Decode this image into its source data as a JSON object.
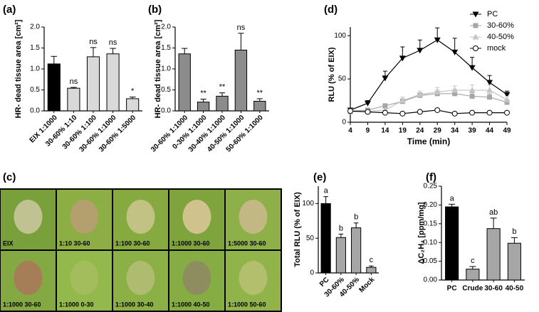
{
  "chart_data": [
    {
      "type": "bar",
      "panel_label": "(a)",
      "y_label": "HR- dead tissue area [cm²]",
      "categories": [
        "EIX 1:1000",
        "30-60% 1:10",
        "30-60% 1:100",
        "30-60% 1:1000",
        "30-60% 1:5000"
      ],
      "values": [
        1.12,
        0.54,
        1.29,
        1.36,
        0.29
      ],
      "errors": [
        0.18,
        0.02,
        0.22,
        0.13,
        0.04
      ],
      "annotations": [
        null,
        "ns",
        "ns",
        "ns",
        "*"
      ],
      "colors": [
        "#000000",
        "#d9d9d9",
        "#d9d9d9",
        "#d9d9d9",
        "#d9d9d9"
      ],
      "ylim": [
        0,
        2.0
      ],
      "yticks": [
        {
          "value": 0,
          "label": "0.0"
        },
        {
          "value": 0.5,
          "label": "0.5"
        },
        {
          "value": 1,
          "label": "1.0"
        },
        {
          "value": 1.5,
          "label": "1.5"
        },
        {
          "value": 2,
          "label": "2.0"
        }
      ]
    },
    {
      "type": "bar",
      "panel_label": "(b)",
      "y_label": "HR- dead tissue area [cm²]",
      "categories": [
        "30-60% 1:1000",
        "0-30% 1:1000",
        "30-40% 1:1000",
        "40-50% 1:1000",
        "50-60% 1:1000"
      ],
      "values": [
        1.36,
        0.21,
        0.35,
        1.45,
        0.23
      ],
      "errors": [
        0.13,
        0.07,
        0.08,
        0.4,
        0.06
      ],
      "annotations": [
        null,
        "**",
        "**",
        "ns",
        "**"
      ],
      "colors": [
        "#8c8c8c",
        "#8c8c8c",
        "#8c8c8c",
        "#8c8c8c",
        "#8c8c8c"
      ],
      "ylim": [
        0,
        2.0
      ],
      "yticks": [
        {
          "value": 0,
          "label": "0.0"
        },
        {
          "value": 0.5,
          "label": "0.5"
        },
        {
          "value": 1,
          "label": "1.0"
        },
        {
          "value": 1.5,
          "label": "1.5"
        },
        {
          "value": 2,
          "label": "2.0"
        }
      ]
    },
    {
      "type": "line",
      "panel_label": "(d)",
      "y_label": "RLU (% of EIX)",
      "x_label": "Time (min)",
      "x": [
        4,
        9,
        14,
        19,
        24,
        29,
        34,
        39,
        44,
        49
      ],
      "xlim": [
        4,
        49
      ],
      "xticks": [
        4,
        9,
        14,
        19,
        24,
        29,
        34,
        39,
        44,
        49
      ],
      "ylim": [
        0,
        110
      ],
      "yticks": [
        0,
        50,
        100
      ],
      "series": [
        {
          "name": "PC",
          "color": "#000000",
          "marker": "triangle-down",
          "values": [
            14,
            22,
            51,
            74,
            83,
            95,
            81,
            63,
            46,
            32
          ],
          "errors": [
            2,
            3,
            8,
            13,
            12,
            14,
            16,
            12,
            8,
            4
          ]
        },
        {
          "name": "30-60%",
          "color": "#a6a6a6",
          "marker": "square",
          "values": [
            13,
            14,
            19,
            24,
            31,
            33,
            33,
            30,
            29,
            23
          ],
          "errors": [
            1,
            1,
            2,
            3,
            3,
            4,
            5,
            4,
            4,
            3
          ]
        },
        {
          "name": "40-50%",
          "color": "#c4c4c4",
          "marker": "triangle",
          "values": [
            12,
            13,
            14,
            25,
            32,
            35,
            37,
            37,
            37,
            26
          ],
          "errors": [
            1,
            1,
            2,
            4,
            4,
            5,
            5,
            6,
            6,
            4
          ]
        },
        {
          "name": "mock",
          "color": "#000000",
          "marker": "circle-open",
          "values": [
            13,
            12,
            11,
            10,
            12,
            14,
            10,
            11,
            11,
            11
          ]
        }
      ]
    },
    {
      "type": "bar",
      "panel_label": "(e)",
      "y_label": "Total RLU (% of EIX)",
      "categories": [
        "PC",
        "30-60%",
        "40-50%",
        "Mock"
      ],
      "values": [
        100,
        51,
        65,
        8
      ],
      "errors": [
        10,
        5,
        7,
        2
      ],
      "annotations": [
        "a",
        "b",
        "b",
        "c"
      ],
      "colors": [
        "#000000",
        "#a6a6a6",
        "#a6a6a6",
        "#a6a6a6"
      ],
      "ylim": [
        0,
        125
      ],
      "yticks": [
        0,
        50,
        100
      ]
    },
    {
      "type": "bar",
      "panel_label": "(f)",
      "y_label": "ΔC₂H₄ [ppm/mg]",
      "categories": [
        "PC",
        "Crude",
        "30-60",
        "40-50"
      ],
      "values": [
        0.195,
        0.029,
        0.137,
        0.098
      ],
      "errors": [
        0.007,
        0.007,
        0.028,
        0.015
      ],
      "annotations": [
        "a",
        "c",
        "ab",
        "b"
      ],
      "colors": [
        "#000000",
        "#a6a6a6",
        "#a6a6a6",
        "#a6a6a6"
      ],
      "ylim": [
        0,
        0.25
      ],
      "yticks": [
        {
          "value": 0,
          "label": "0.00"
        },
        {
          "value": 0.05,
          "label": "0.05"
        },
        {
          "value": 0.1,
          "label": "0.10"
        },
        {
          "value": 0.15,
          "label": "0.15"
        },
        {
          "value": 0.2,
          "label": "0.20"
        },
        {
          "value": 0.25,
          "label": "0.25"
        }
      ]
    }
  ],
  "photo_panel": {
    "panel_label": "(c)",
    "tiles": [
      "EIX",
      "1:10 30-60",
      "1:100 30-60",
      "1:1000 30-60",
      "1:5000 30-60",
      "1:1000 30-60",
      "1:1000 0-30",
      "1:1000 30-40",
      "1:1000 40-50",
      "1:1000 50-60"
    ]
  }
}
